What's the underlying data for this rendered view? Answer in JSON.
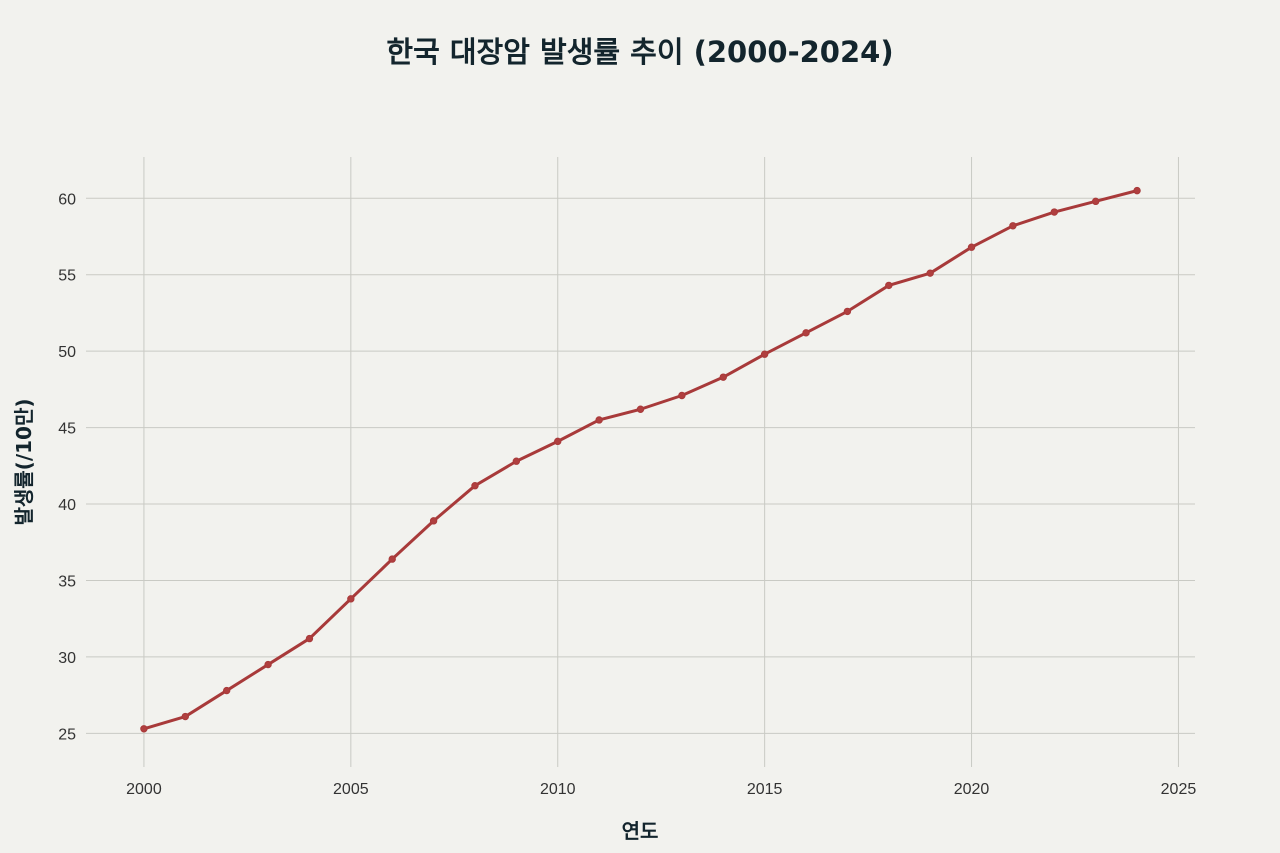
{
  "chart_data": {
    "type": "line",
    "title": "한국 대장암 발생률 추이 (2000-2024)",
    "xlabel": "연도",
    "ylabel": "발생률(/10만)",
    "xlim": [
      1998.6,
      2025.4
    ],
    "ylim": [
      22.8,
      62.7
    ],
    "x_ticks": [
      2000,
      2005,
      2010,
      2015,
      2020,
      2025
    ],
    "y_ticks": [
      25,
      30,
      35,
      40,
      45,
      50,
      55,
      60
    ],
    "grid": true,
    "legend": "none",
    "series": [
      {
        "color": "#a83a3a",
        "marker_color": "#b03f3f",
        "x": [
          2000,
          2001,
          2002,
          2003,
          2004,
          2005,
          2006,
          2007,
          2008,
          2009,
          2010,
          2011,
          2012,
          2013,
          2014,
          2015,
          2016,
          2017,
          2018,
          2019,
          2020,
          2021,
          2022,
          2023,
          2024
        ],
        "y": [
          25.3,
          26.1,
          27.8,
          29.5,
          31.2,
          33.8,
          36.4,
          38.9,
          41.2,
          42.8,
          44.1,
          45.5,
          46.2,
          47.1,
          48.3,
          49.8,
          51.2,
          52.6,
          54.3,
          55.1,
          56.8,
          58.2,
          59.1,
          59.8,
          60.5
        ]
      }
    ]
  }
}
